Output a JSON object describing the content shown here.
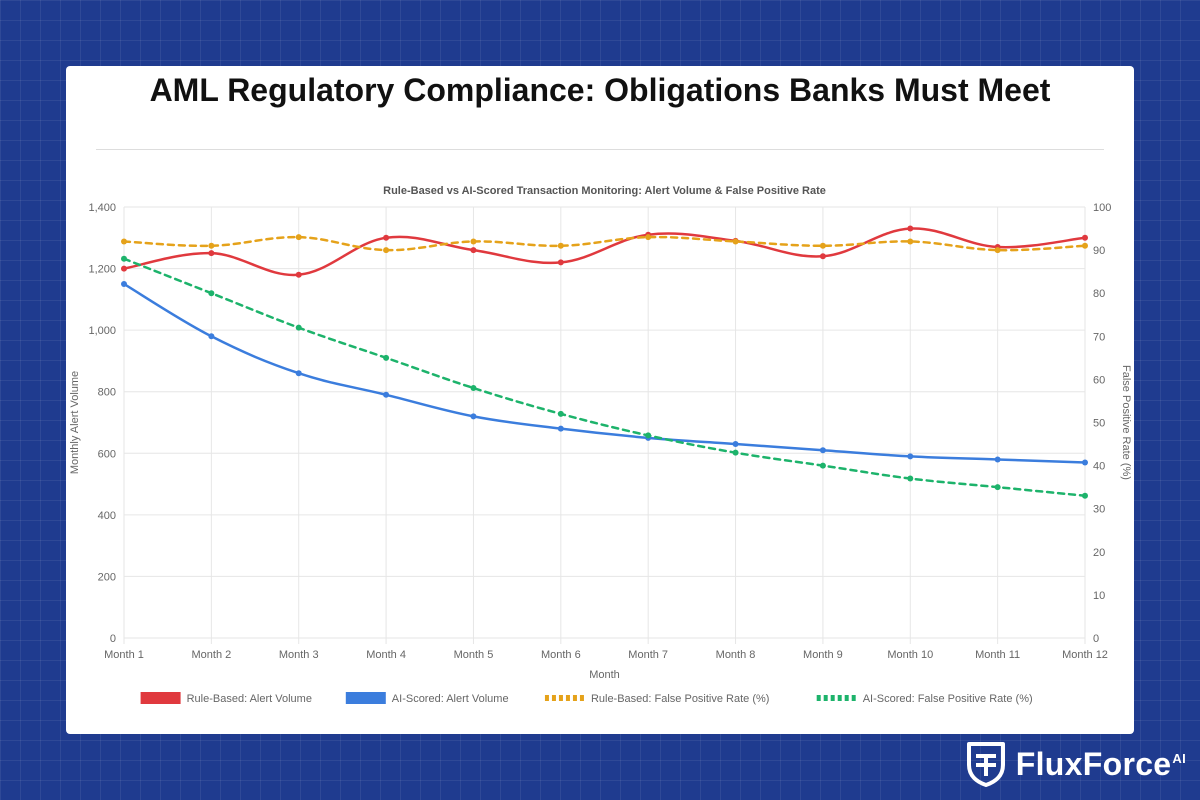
{
  "page": {
    "title": "AML Regulatory Compliance: Obligations Banks Must Meet"
  },
  "brand": {
    "name": "FluxForce",
    "suffix": "AI",
    "icon": "shield-icon"
  },
  "chart_data": {
    "type": "line",
    "title": "Rule-Based vs AI-Scored Transaction Monitoring: Alert Volume & False Positive Rate",
    "xlabel": "Month",
    "ylabel": "Monthly Alert Volume",
    "y2label": "False Positive Rate (%)",
    "categories": [
      "Month 1",
      "Month 2",
      "Month 3",
      "Month 4",
      "Month 5",
      "Month 6",
      "Month 7",
      "Month 8",
      "Month 9",
      "Month 10",
      "Month 11",
      "Month 12"
    ],
    "ylim": [
      0,
      1400
    ],
    "y2lim": [
      0,
      100
    ],
    "yticks": [
      "0",
      "200",
      "400",
      "600",
      "800",
      "1,000",
      "1,200",
      "1,400"
    ],
    "y2ticks": [
      "0",
      "10",
      "20",
      "30",
      "40",
      "50",
      "60",
      "70",
      "80",
      "90",
      "100"
    ],
    "grid": true,
    "legend_position": "bottom",
    "series": [
      {
        "name": "Rule-Based: Alert Volume",
        "axis": "left",
        "color": "#e0393e",
        "dashed": false,
        "values": [
          1200,
          1250,
          1180,
          1300,
          1260,
          1220,
          1310,
          1290,
          1240,
          1330,
          1270,
          1300
        ]
      },
      {
        "name": "AI-Scored: Alert Volume",
        "axis": "left",
        "color": "#3b7ddd",
        "dashed": false,
        "values": [
          1150,
          980,
          860,
          790,
          720,
          680,
          650,
          630,
          610,
          590,
          580,
          570
        ]
      },
      {
        "name": "Rule-Based: False Positive Rate (%)",
        "axis": "right",
        "color": "#e5a21a",
        "dashed": true,
        "values": [
          92,
          91,
          93,
          90,
          92,
          91,
          93,
          92,
          91,
          92,
          90,
          91
        ]
      },
      {
        "name": "AI-Scored: False Positive Rate (%)",
        "axis": "right",
        "color": "#1db36b",
        "dashed": true,
        "values": [
          88,
          80,
          72,
          65,
          58,
          52,
          47,
          43,
          40,
          37,
          35,
          33
        ]
      }
    ]
  }
}
